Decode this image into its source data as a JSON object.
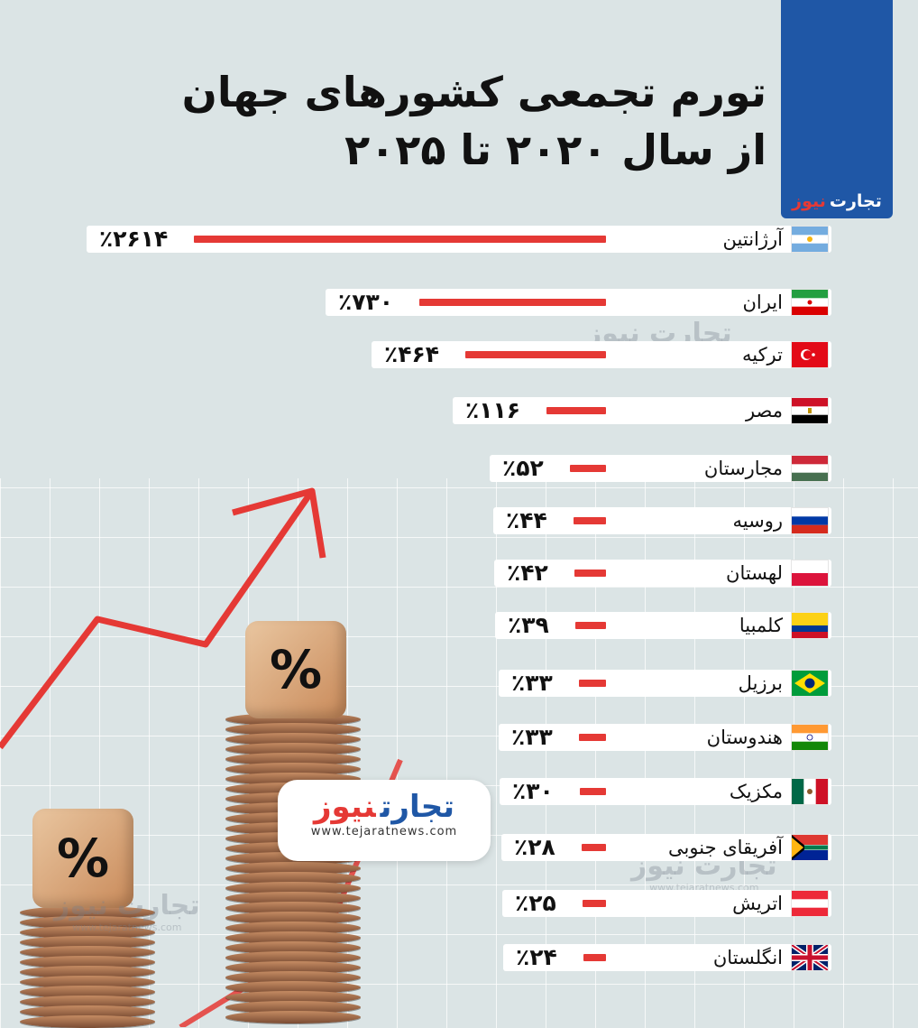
{
  "brand": {
    "name_part1": "تجارت",
    "name_part2": "نیوز",
    "url": "www.tejaratnews.com"
  },
  "title": {
    "line1": "تورم تجمعی کشورهای جهان",
    "line2": "از سال ۲۰۲۰ تا ۲۰۲۵"
  },
  "decor": {
    "percent_symbol": "%"
  },
  "colors": {
    "accent_red": "#e53935",
    "brand_blue": "#1f57a6",
    "background": "#dbe4e5"
  },
  "chart_data": {
    "type": "bar",
    "orientation": "horizontal",
    "categories": [
      "آرژانتین",
      "ایران",
      "ترکیه",
      "مصر",
      "مجارستان",
      "روسیه",
      "لهستان",
      "کلمبیا",
      "برزیل",
      "هندوستان",
      "مکزیک",
      "آفریقای جنوبی",
      "اتریش",
      "انگلستان"
    ],
    "values": [
      2614,
      730,
      464,
      116,
      52,
      44,
      42,
      39,
      33,
      33,
      30,
      28,
      25,
      24
    ],
    "labels": [
      "٪۲۶۱۴",
      "٪۷۳۰",
      "٪۴۶۴",
      "٪۱۱۶",
      "٪۵۲",
      "٪۴۴",
      "٪۴۲",
      "٪۳۹",
      "٪۳۳",
      "٪۳۳",
      "٪۳۰",
      "٪۲۸",
      "٪۲۵",
      "٪۲۴"
    ],
    "flags": [
      "argentina-flag",
      "iran-flag",
      "turkey-flag",
      "egypt-flag",
      "hungary-flag",
      "russia-flag",
      "poland-flag",
      "colombia-flag",
      "brazil-flag",
      "india-flag",
      "mexico-flag",
      "south-africa-flag",
      "austria-flag",
      "uk-flag"
    ],
    "unit": "%",
    "title": "تورم تجمعی کشورهای جهان از سال ۲۰۲۰ تا ۲۰۲۵"
  }
}
